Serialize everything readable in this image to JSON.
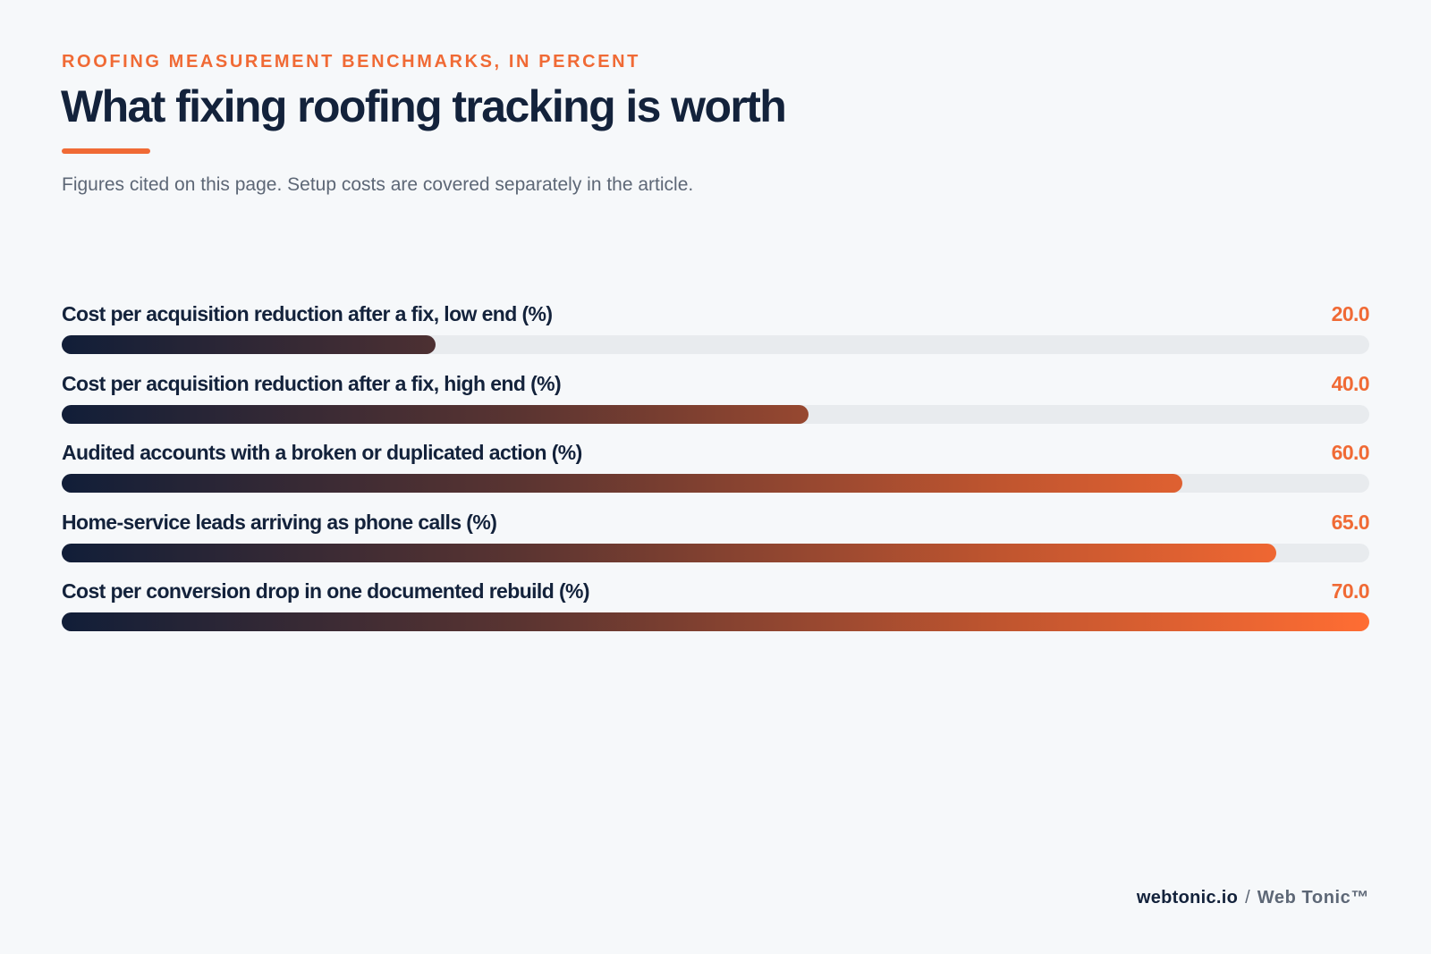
{
  "header": {
    "eyebrow": "ROOFING MEASUREMENT BENCHMARKS, IN PERCENT",
    "title": "What fixing roofing tracking is worth",
    "subtitle": "Figures cited on this page. Setup costs are covered separately in the article."
  },
  "chart_data": {
    "type": "bar",
    "orientation": "horizontal",
    "categories": [
      "Cost per acquisition reduction after a fix, low end (%)",
      "Cost per acquisition reduction after a fix, high end (%)",
      "Audited accounts with a broken or duplicated action (%)",
      "Home-service leads arriving as phone calls (%)",
      "Cost per conversion drop in one documented rebuild (%)"
    ],
    "values": [
      20.0,
      40.0,
      60.0,
      65.0,
      70.0
    ],
    "value_labels": [
      "20.0",
      "40.0",
      "60.0",
      "65.0",
      "70.0"
    ],
    "xlim": [
      0,
      70
    ],
    "grid": false,
    "legend": "none"
  },
  "colors": {
    "accent": "#f06a35",
    "ink": "#13223b",
    "track": "#e8ebee",
    "gradient_start": "#111e38",
    "gradient_end": "#ff6d33"
  },
  "footer": {
    "site": "webtonic.io",
    "separator": "/",
    "brand": "Web Tonic™"
  }
}
